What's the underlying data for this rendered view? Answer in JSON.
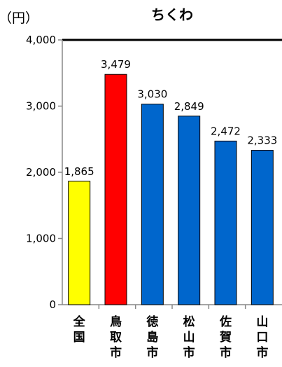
{
  "chart_data": {
    "type": "bar",
    "title": "ちくわ",
    "unit_label": "（円）",
    "categories": [
      "全国",
      "鳥取市",
      "徳島市",
      "松山市",
      "佐賀市",
      "山口市"
    ],
    "values": [
      1865,
      3479,
      3030,
      2849,
      2472,
      2333
    ],
    "value_labels": [
      "1,865",
      "3,479",
      "3,030",
      "2,849",
      "2,472",
      "2,333"
    ],
    "bar_colors": [
      "#ffff00",
      "#ff0000",
      "#0066cc",
      "#0066cc",
      "#0066cc",
      "#0066cc"
    ],
    "ylim": [
      0,
      4000
    ],
    "yticks": [
      0,
      1000,
      2000,
      3000,
      4000
    ],
    "ytick_labels": [
      "0",
      "1,000",
      "2,000",
      "3,000",
      "4,000"
    ],
    "grid": false,
    "legend": "none"
  }
}
